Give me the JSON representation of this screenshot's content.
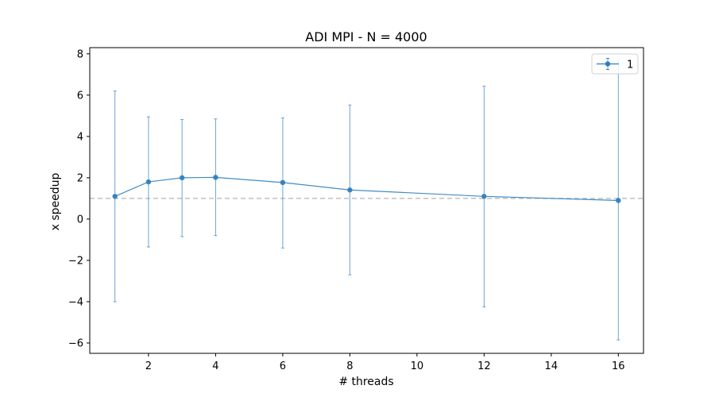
{
  "chart_data": {
    "type": "line",
    "title": "ADI MPI - N = 4000",
    "xlabel": "# threads",
    "ylabel": "x speedup",
    "xlim": [
      0.25,
      16.75
    ],
    "ylim": [
      -6.5,
      8.3
    ],
    "xticks": [
      2,
      4,
      6,
      8,
      10,
      12,
      14,
      16
    ],
    "yticks": [
      -6,
      -4,
      -2,
      0,
      2,
      4,
      6,
      8
    ],
    "grid": false,
    "legend_position": "top-right",
    "reference_line": {
      "y": 1.0,
      "style": "dashed",
      "color": "#c0c0c0"
    },
    "series": [
      {
        "name": "1",
        "color": "#2f7fbf",
        "x": [
          1,
          2,
          3,
          4,
          6,
          8,
          12,
          16
        ],
        "y": [
          1.1,
          1.8,
          2.0,
          2.02,
          1.77,
          1.41,
          1.1,
          0.9
        ],
        "err_low": [
          -4.0,
          -1.35,
          -0.85,
          -0.8,
          -1.4,
          -2.7,
          -4.25,
          -5.85
        ],
        "err_high": [
          6.2,
          4.95,
          4.82,
          4.85,
          4.9,
          5.52,
          6.43,
          7.7
        ]
      }
    ]
  }
}
